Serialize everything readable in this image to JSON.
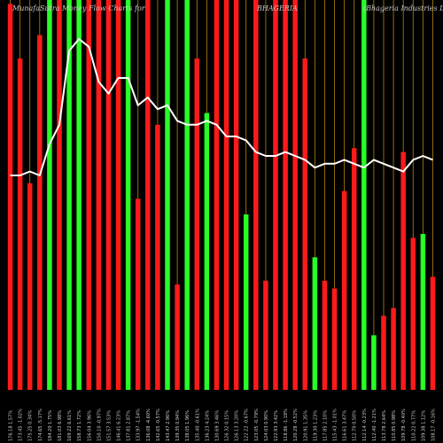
{
  "header": {
    "left": "MunafaSutra Money Flow Charts for",
    "symbol": "BHAGERIA",
    "company": "(Bhageria Industries Ltd)"
  },
  "colors": {
    "background": "#000000",
    "up_bar": "#27ff27",
    "down_bar": "#ff1a1a",
    "grid_line": "#b8860b",
    "price_line": "#ffffff",
    "text": "#c8c8c8"
  },
  "chart_data": {
    "type": "bar",
    "grid": true,
    "bar_scale": [
      0,
      100
    ],
    "price_scale": [
      0,
      100
    ],
    "categories": [
      "176.18 1.57%",
      "173.45 -1.02%",
      "175.25 0.34%",
      "174.65 -5.17%",
      "184.20 1.75%",
      "181.03 6.98%",
      "169.22 6.61%",
      "158.73 1.72%",
      "156.04 3.96%",
      "150.10 -0.97%",
      "151.57 3.53%",
      "146.41 6.23%",
      "137.81 2.87%",
      "133.97 -1.54%",
      "136.08 -4.60%",
      "142.65 -0.57%",
      "143.47 2.96%",
      "139.35 0.94%",
      "138.05 1.96%",
      "135.40 -0.61%",
      "136.23 4.24%",
      "130.69 3.46%",
      "126.32 0.15%",
      "126.13 3.20%",
      "122.22 -0.67%",
      "123.05 -0.79%",
      "124.03 0.90%",
      "122.93 3.42%",
      "118.86 -1.18%",
      "120.28 -0.52%",
      "120.91 1.35%",
      "119.30 1.23%",
      "117.85 2.10%",
      "115.43 -1.01%",
      "116.61 3.47%",
      "112.70 0.50%",
      "112.14 -0.23%",
      "112.40 -1.21%",
      "113.78 2.64%",
      "110.85 0.98%",
      "109.78 -0.40%",
      "110.22 0.77%",
      "109.38 1.12%",
      "108.17 -0.16%"
    ],
    "series": [
      {
        "direction": [
          "down",
          "down",
          "down",
          "down",
          "up",
          "down",
          "up",
          "up",
          "down",
          "down",
          "down",
          "down",
          "up",
          "down",
          "down",
          "down",
          "up",
          "down",
          "up",
          "down",
          "up",
          "down",
          "down",
          "down",
          "up",
          "down",
          "down",
          "down",
          "down",
          "down",
          "down",
          "up",
          "down",
          "down",
          "down",
          "down",
          "up",
          "up",
          "down",
          "down",
          "down",
          "down",
          "up",
          "down"
        ],
        "bar_height": [
          99,
          85,
          53,
          91,
          100,
          100,
          100,
          100,
          100,
          100,
          100,
          100,
          100,
          49,
          100,
          68,
          100,
          27,
          100,
          85,
          71,
          100,
          100,
          100,
          45,
          100,
          28,
          100,
          100,
          100,
          85,
          34,
          28,
          26,
          51,
          62,
          100,
          14,
          19,
          21,
          61,
          39,
          40,
          29
        ],
        "price_line": [
          55,
          55,
          56,
          55,
          63,
          68,
          87,
          90,
          88,
          79,
          76,
          80,
          80,
          73,
          75,
          72,
          73,
          69,
          68,
          68,
          69,
          68,
          65,
          65,
          64,
          61,
          60,
          60,
          61,
          60,
          59,
          57,
          58,
          58,
          59,
          58,
          57,
          59,
          58,
          57,
          56,
          59,
          60,
          59
        ]
      }
    ]
  }
}
